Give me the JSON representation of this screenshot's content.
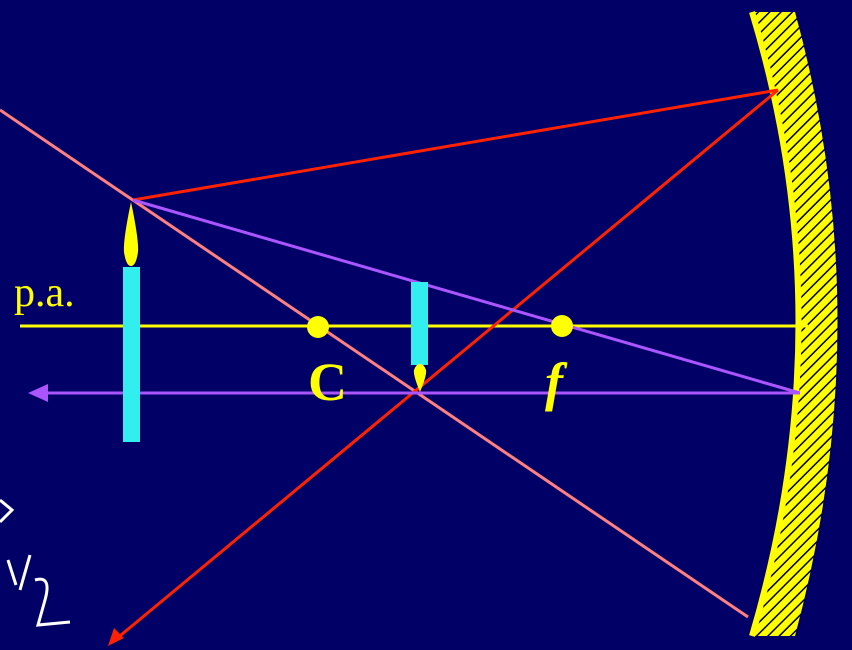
{
  "labels": {
    "axis": "p.a.",
    "center": "C",
    "focus": "f"
  }
}
